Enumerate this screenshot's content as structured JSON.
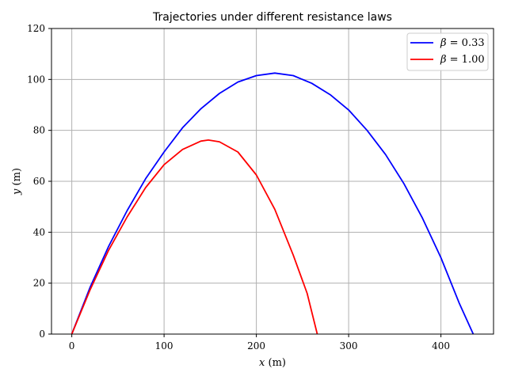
{
  "chart_data": {
    "type": "line",
    "title": "Trajectories under different resistance laws",
    "xlabel_var": "x",
    "xlabel_unit": " (m)",
    "ylabel_var": "y",
    "ylabel_unit": " (m)",
    "xlim": [
      -22,
      457
    ],
    "ylim": [
      0,
      120
    ],
    "xticks": [
      0,
      100,
      200,
      300,
      400
    ],
    "yticks": [
      0,
      20,
      40,
      60,
      80,
      100,
      120
    ],
    "grid": true,
    "legend_position": "top-right",
    "series": [
      {
        "name_var": "β",
        "name_value": " = 0.33",
        "color": "#0000ff",
        "x": [
          0,
          20,
          40,
          60,
          80,
          100,
          120,
          140,
          160,
          180,
          200,
          220,
          240,
          260,
          280,
          300,
          320,
          340,
          360,
          380,
          400,
          420,
          435
        ],
        "y": [
          0,
          18.5,
          34.5,
          48.5,
          61,
          71.5,
          81,
          88.5,
          94.5,
          99,
          101.5,
          102.5,
          101.5,
          98.5,
          94,
          88,
          80,
          70.5,
          59,
          45.5,
          30,
          12,
          0
        ]
      },
      {
        "name_var": "β",
        "name_value": " = 1.00",
        "color": "#ff0000",
        "x": [
          0,
          20,
          40,
          60,
          80,
          100,
          120,
          140,
          148,
          160,
          180,
          200,
          220,
          240,
          255,
          266
        ],
        "y": [
          0,
          17.5,
          33,
          46,
          57.5,
          66.5,
          72.5,
          75.8,
          76.2,
          75.5,
          71.5,
          62.5,
          49,
          31,
          16,
          0
        ]
      }
    ]
  }
}
